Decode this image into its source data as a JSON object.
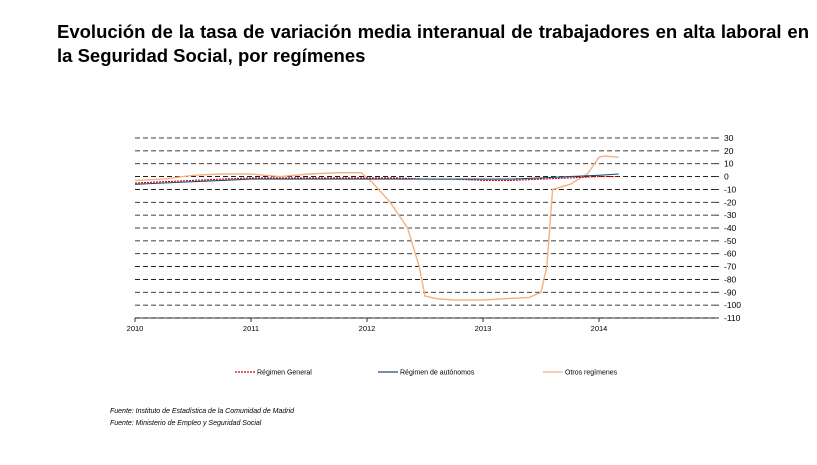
{
  "title": "Evolución de la tasa de variación media interanual de trabajadores en alta laboral en la Seguridad Social, por  regímenes",
  "sources": [
    "Fuente: Instituto de Estadística de la Comunidad de Madrid",
    "Fuente: Ministerio de Empleo y Seguridad Social"
  ],
  "chart_data": {
    "type": "line",
    "title": "Evolución de la tasa de variación media interanual de trabajadores en alta laboral en la Seguridad Social, por  regímenes",
    "xlabel": "",
    "ylabel": "",
    "x_ticks": [
      "2010",
      "2011",
      "2012",
      "2013",
      "2014"
    ],
    "y_ticks": [
      30,
      20,
      10,
      0,
      -10,
      -20,
      -30,
      -40,
      -50,
      -60,
      -70,
      -80,
      -90,
      -100,
      -110
    ],
    "xlim": [
      2010,
      2015
    ],
    "ylim": [
      -110,
      30
    ],
    "grid": true,
    "legend": "bottom",
    "series": [
      {
        "name": "Régimen General",
        "color": "#cc0000",
        "x": [
          2010.0,
          2010.25,
          2010.5,
          2010.75,
          2011.0,
          2011.25,
          2011.5,
          2011.75,
          2012.0,
          2012.25,
          2012.5,
          2012.75,
          2013.0,
          2013.25,
          2013.5,
          2013.75,
          2014.0,
          2014.17
        ],
        "values": [
          -5,
          -4,
          -3,
          -2,
          -1,
          -1,
          -1,
          -1,
          -1,
          -1,
          -2,
          -2,
          -3,
          -3,
          -2,
          -1,
          0,
          0
        ]
      },
      {
        "name": "Régimen de autónomos",
        "color": "#1f4e79",
        "x": [
          2010.0,
          2010.25,
          2010.5,
          2010.75,
          2011.0,
          2011.25,
          2011.5,
          2011.75,
          2012.0,
          2012.25,
          2012.5,
          2012.75,
          2013.0,
          2013.25,
          2013.5,
          2013.75,
          2014.0,
          2014.17
        ],
        "values": [
          -6,
          -5,
          -4,
          -3,
          -2,
          -2,
          -2,
          -2,
          -2,
          -2,
          -2,
          -2,
          -2,
          -2,
          -1,
          0,
          1,
          2
        ]
      },
      {
        "name": "Otros regímenes",
        "color": "#f4b183",
        "x": [
          2010.0,
          2010.25,
          2010.5,
          2010.75,
          2011.0,
          2011.25,
          2011.5,
          2011.75,
          2011.95,
          2012.05,
          2012.2,
          2012.35,
          2012.45,
          2012.5,
          2012.6,
          2012.75,
          2013.0,
          2013.2,
          2013.4,
          2013.5,
          2013.55,
          2013.6,
          2013.75,
          2013.9,
          2014.0,
          2014.05,
          2014.17
        ],
        "values": [
          -3,
          -2,
          1,
          2,
          2,
          0,
          2,
          3,
          3,
          -5,
          -20,
          -40,
          -70,
          -93,
          -95,
          -96,
          -96,
          -95,
          -94,
          -90,
          -70,
          -10,
          -6,
          2,
          15,
          16,
          15
        ]
      }
    ]
  }
}
